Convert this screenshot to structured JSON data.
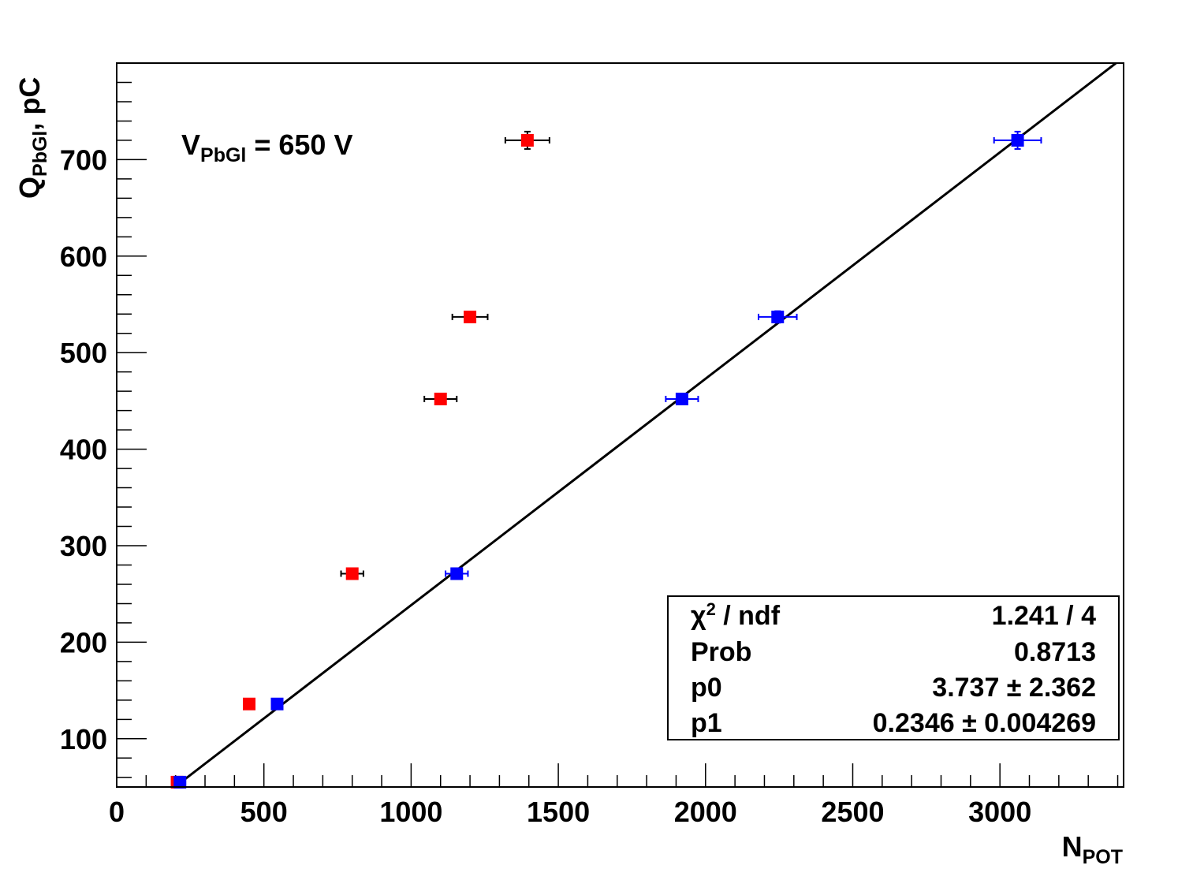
{
  "chart_data": {
    "type": "scatter",
    "title": "",
    "xlabel": "N",
    "xlabel_sub": "POT",
    "ylabel": "Q",
    "ylabel_sub": "PbGl",
    "ylabel_suffix": ", pC",
    "xlim": [
      0,
      3420
    ],
    "ylim": [
      50,
      800
    ],
    "x_ticks": [
      "0",
      "500",
      "1000",
      "1500",
      "2000",
      "2500",
      "3000"
    ],
    "x_tick_values": [
      0,
      500,
      1000,
      1500,
      2000,
      2500,
      3000
    ],
    "y_ticks": [
      "100",
      "200",
      "300",
      "400",
      "500",
      "600",
      "700"
    ],
    "y_tick_values": [
      100,
      200,
      300,
      400,
      500,
      600,
      700
    ],
    "annotation": {
      "main": "V",
      "sub": "PbGl",
      "rest": " = 650 V"
    },
    "series": [
      {
        "name": "red",
        "color": "#ff0000",
        "error_color": "#000000",
        "points": [
          {
            "x": 205,
            "y": 55,
            "xerr": 0,
            "yerr": 0
          },
          {
            "x": 450,
            "y": 136,
            "xerr": 0,
            "yerr": 0
          },
          {
            "x": 800,
            "y": 271,
            "xerr": 38,
            "yerr": 0
          },
          {
            "x": 1100,
            "y": 452,
            "xerr": 55,
            "yerr": 4
          },
          {
            "x": 1200,
            "y": 537,
            "xerr": 60,
            "yerr": 5
          },
          {
            "x": 1395,
            "y": 720,
            "xerr": 75,
            "yerr": 9
          }
        ]
      },
      {
        "name": "blue",
        "color": "#0000ff",
        "error_color": "#0000ff",
        "points": [
          {
            "x": 215,
            "y": 55,
            "xerr": 0,
            "yerr": 0
          },
          {
            "x": 545,
            "y": 136,
            "xerr": 0,
            "yerr": 0
          },
          {
            "x": 1155,
            "y": 271,
            "xerr": 38,
            "yerr": 0
          },
          {
            "x": 1920,
            "y": 452,
            "xerr": 55,
            "yerr": 5
          },
          {
            "x": 2245,
            "y": 537,
            "xerr": 65,
            "yerr": 6
          },
          {
            "x": 3060,
            "y": 720,
            "xerr": 80,
            "yerr": 9
          }
        ]
      }
    ],
    "fit": {
      "p0": 3.737,
      "p1": 0.2346,
      "x_range": [
        205,
        3420
      ],
      "color": "#000000"
    },
    "stats": {
      "chi2_label": "χ",
      "chi2_sup": "2",
      "chi2_rest": " / ndf",
      "chi2_value": "1.241 / 4",
      "prob_label": "Prob",
      "prob_value": "0.8713",
      "p0_label": "p0",
      "p0_value": "3.737 ± 2.362",
      "p1_label": "p1",
      "p1_value": "0.2346 ± 0.004269"
    }
  }
}
